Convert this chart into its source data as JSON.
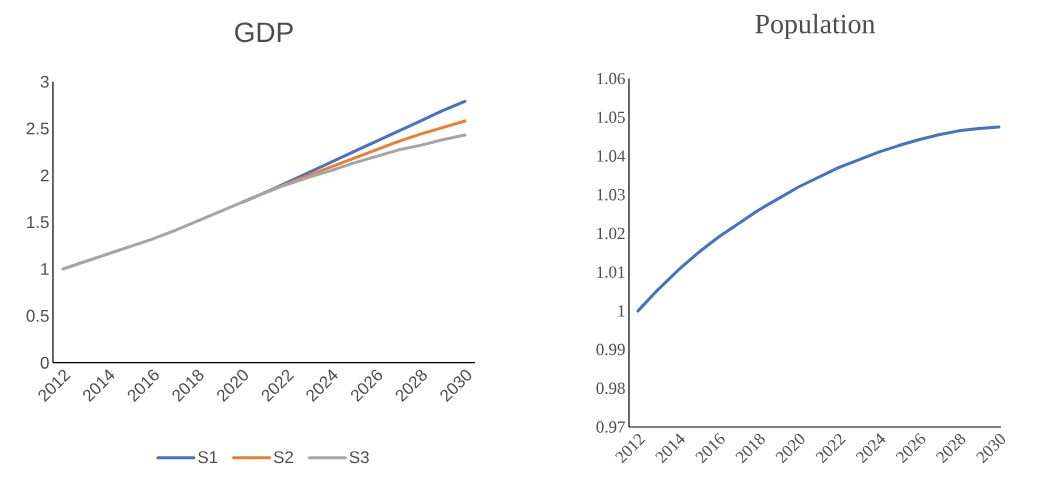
{
  "chart_data": [
    {
      "type": "line",
      "title": "GDP",
      "categories": [
        "2012",
        null,
        "2014",
        null,
        "2016",
        null,
        "2018",
        null,
        "2020",
        null,
        "2022",
        null,
        "2024",
        null,
        "2026",
        null,
        "2028",
        null,
        "2030"
      ],
      "series": [
        {
          "name": "S1",
          "color": "#4472c4",
          "values": [
            null,
            null,
            null,
            null,
            null,
            null,
            null,
            null,
            1.71,
            1.81,
            1.92,
            2.03,
            2.14,
            2.25,
            2.36,
            2.47,
            2.58,
            2.69,
            2.79
          ]
        },
        {
          "name": "S2",
          "color": "#ed7d31",
          "values": [
            null,
            null,
            null,
            null,
            null,
            null,
            null,
            null,
            null,
            1.81,
            1.91,
            2.0,
            2.09,
            2.18,
            2.27,
            2.36,
            2.44,
            2.51,
            2.58
          ]
        },
        {
          "name": "S3",
          "color": "#a5a5a5",
          "values": [
            1.0,
            1.08,
            1.16,
            1.24,
            1.32,
            1.41,
            1.51,
            1.61,
            1.71,
            1.81,
            1.9,
            1.98,
            2.05,
            2.13,
            2.2,
            2.27,
            2.32,
            2.38,
            2.43
          ]
        }
      ],
      "ylim": [
        0,
        3
      ],
      "yticks": [
        0,
        0.5,
        1,
        1.5,
        2,
        2.5,
        3
      ],
      "legend": "bottom",
      "marker": "none"
    },
    {
      "type": "line",
      "title": "Population",
      "categories": [
        "2012",
        null,
        "2014",
        null,
        "2016",
        null,
        "2018",
        null,
        "2020",
        null,
        "2022",
        null,
        "2024",
        null,
        "2026",
        null,
        "2028",
        null,
        "2030"
      ],
      "series": [
        {
          "color": "#4472c4",
          "values": [
            1.0,
            1.0055,
            1.0105,
            1.015,
            1.019,
            1.0225,
            1.026,
            1.029,
            1.032,
            1.0345,
            1.037,
            1.039,
            1.041,
            1.0427,
            1.0442,
            1.0455,
            1.0465,
            1.0471,
            1.0475
          ]
        }
      ],
      "ylim": [
        0.97,
        1.06
      ],
      "yticks": [
        0.97,
        0.98,
        0.99,
        1,
        1.01,
        1.02,
        1.03,
        1.04,
        1.05,
        1.06
      ],
      "legend": false,
      "marker": "none"
    }
  ]
}
